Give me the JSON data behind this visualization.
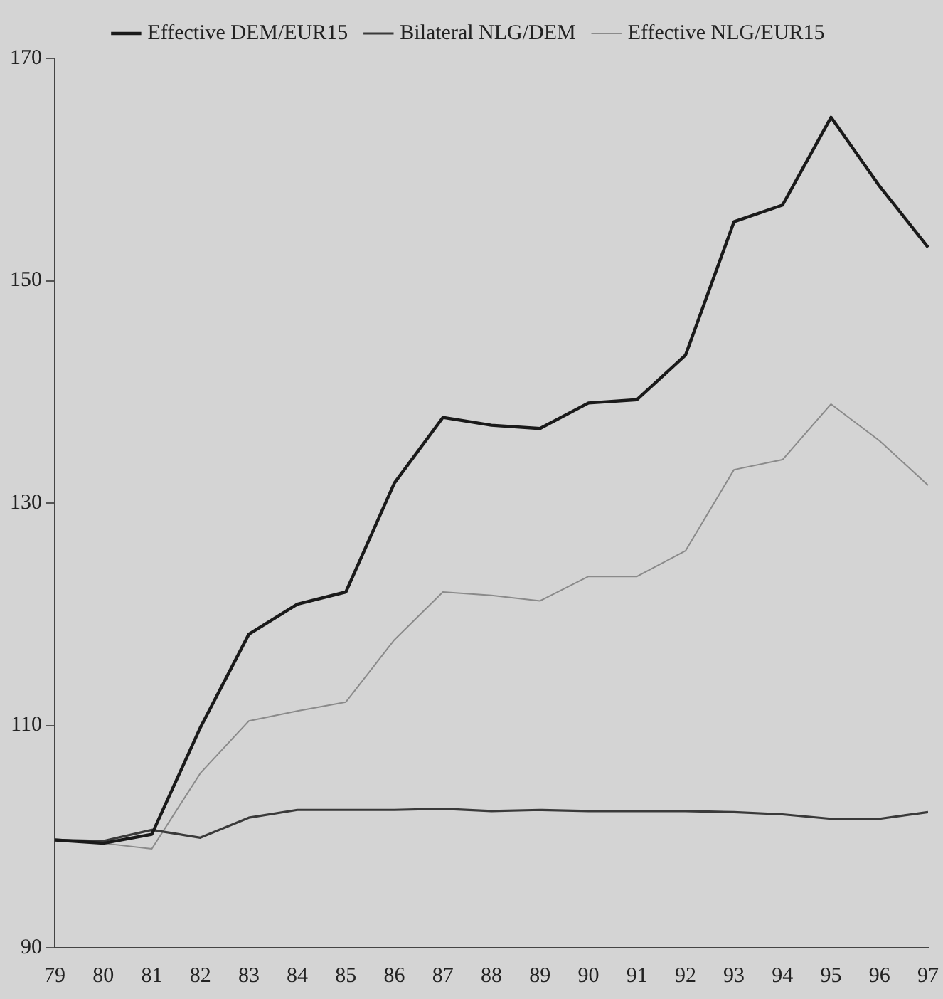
{
  "chart_data": {
    "type": "line",
    "categories": [
      "79",
      "80",
      "81",
      "82",
      "83",
      "84",
      "85",
      "86",
      "87",
      "88",
      "89",
      "90",
      "91",
      "92",
      "93",
      "94",
      "95",
      "96",
      "97"
    ],
    "series": [
      {
        "name": "Effective DEM/EUR15",
        "color": "#1a1a1a",
        "values": [
          99.7,
          99.4,
          100.2,
          109.8,
          118.2,
          120.9,
          122,
          131.8,
          137.7,
          137,
          136.7,
          139,
          139.3,
          143.3,
          155.3,
          156.8,
          164.7,
          158.5,
          153
        ]
      },
      {
        "name": "Bilateral NLG/DEM",
        "color": "#3a3a3a",
        "values": [
          99.7,
          99.6,
          100.6,
          99.9,
          101.7,
          102.4,
          102.4,
          102.4,
          102.5,
          102.3,
          102.4,
          102.3,
          102.3,
          102.3,
          102.2,
          102,
          101.6,
          101.6,
          102.2
        ]
      },
      {
        "name": "Effective NLG/EUR15",
        "color": "#8a8a8a",
        "values": [
          99.7,
          99.4,
          98.9,
          105.7,
          110.4,
          111.3,
          112.1,
          117.7,
          122,
          121.7,
          121.2,
          123.4,
          123.4,
          125.7,
          133,
          133.9,
          138.9,
          135.6,
          131.6
        ]
      }
    ],
    "ylim": [
      90,
      170
    ],
    "yticks": [
      90,
      110,
      130,
      150,
      170
    ],
    "grid": false,
    "legend": "top",
    "marker": "none",
    "line_style": "solid"
  }
}
